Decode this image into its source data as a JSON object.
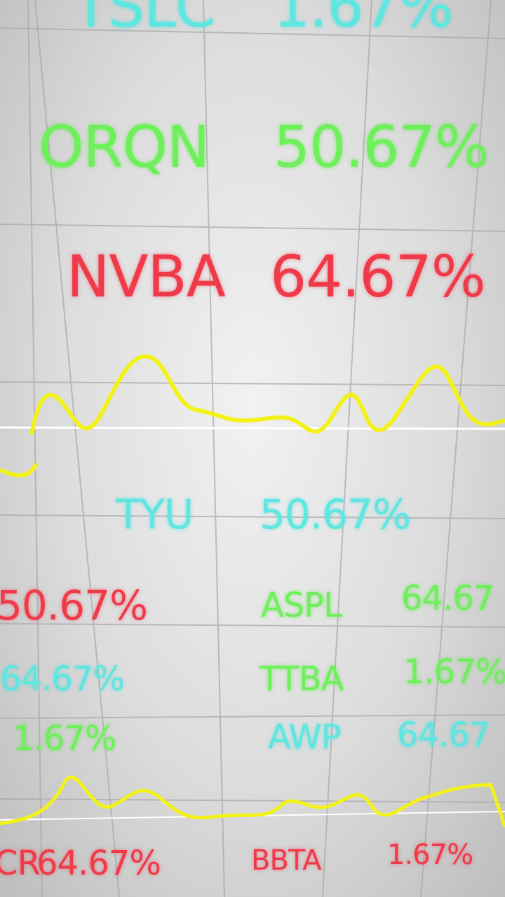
{
  "tickers": [
    {
      "symbol": "TSLC",
      "change": "1.67%"
    },
    {
      "symbol": "ORQN",
      "change": "50.67%"
    },
    {
      "symbol": "NVBA",
      "change": "64.67%"
    },
    {
      "symbol": "TYU",
      "change": "50.67%"
    },
    {
      "change": "50.67%"
    },
    {
      "symbol": "ASPL",
      "change": "64.67"
    },
    {
      "change": "64.67%"
    },
    {
      "symbol": "TTBA",
      "change": "1.67%"
    },
    {
      "change": "1.67%"
    },
    {
      "symbol": "AWP",
      "change": "64.67"
    },
    {
      "symbol": "CR",
      "change": "64.67%"
    },
    {
      "symbol": "BBTA",
      "change": "1.67%"
    }
  ]
}
